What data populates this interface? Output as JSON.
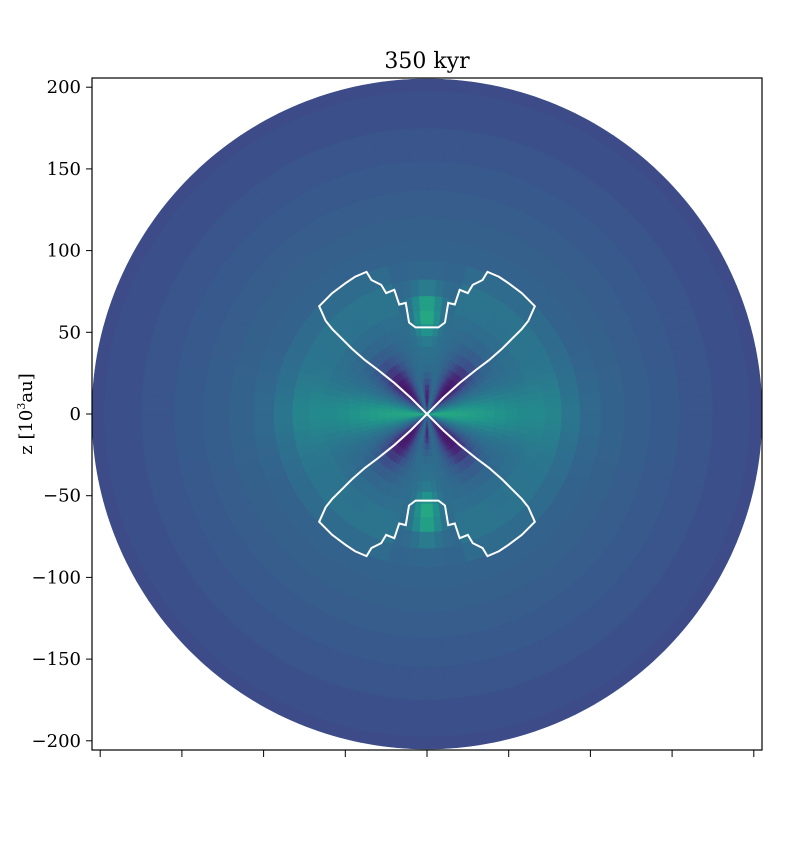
{
  "chart_data": {
    "type": "heatmap",
    "title": "350 kyr",
    "ylabel_base": "z [10",
    "ylabel_exp": "3",
    "ylabel_unit": "au]",
    "xlabel": "",
    "xlim": [
      -200,
      200
    ],
    "ylim": [
      -200,
      200
    ],
    "yticks": [
      200,
      150,
      100,
      50,
      0,
      -50,
      -100,
      -150,
      -200
    ],
    "ytick_labels": [
      "200",
      "150",
      "100",
      "50",
      "0",
      "−50",
      "−100",
      "−150",
      "−200"
    ],
    "xticks": [
      -200,
      -150,
      -100,
      -50,
      0,
      50,
      100,
      150,
      200
    ],
    "xtick_labels_visible": false,
    "colormap": "viridis",
    "domain_radius": 205,
    "contour_color": "#ffffff",
    "contour_upper_right": [
      [
        0,
        0
      ],
      [
        10,
        10
      ],
      [
        20,
        19
      ],
      [
        30,
        27
      ],
      [
        38,
        33
      ],
      [
        46,
        40
      ],
      [
        52,
        46
      ],
      [
        58,
        52
      ],
      [
        62,
        57
      ],
      [
        66,
        66
      ],
      [
        58,
        74
      ],
      [
        50,
        80
      ],
      [
        44,
        84
      ],
      [
        37,
        87
      ],
      [
        34,
        82
      ],
      [
        28,
        79
      ],
      [
        25,
        74
      ],
      [
        20,
        76
      ],
      [
        17,
        67
      ],
      [
        13,
        68
      ],
      [
        11,
        56
      ],
      [
        7,
        53
      ],
      [
        4,
        53
      ],
      [
        0,
        53
      ]
    ]
  }
}
